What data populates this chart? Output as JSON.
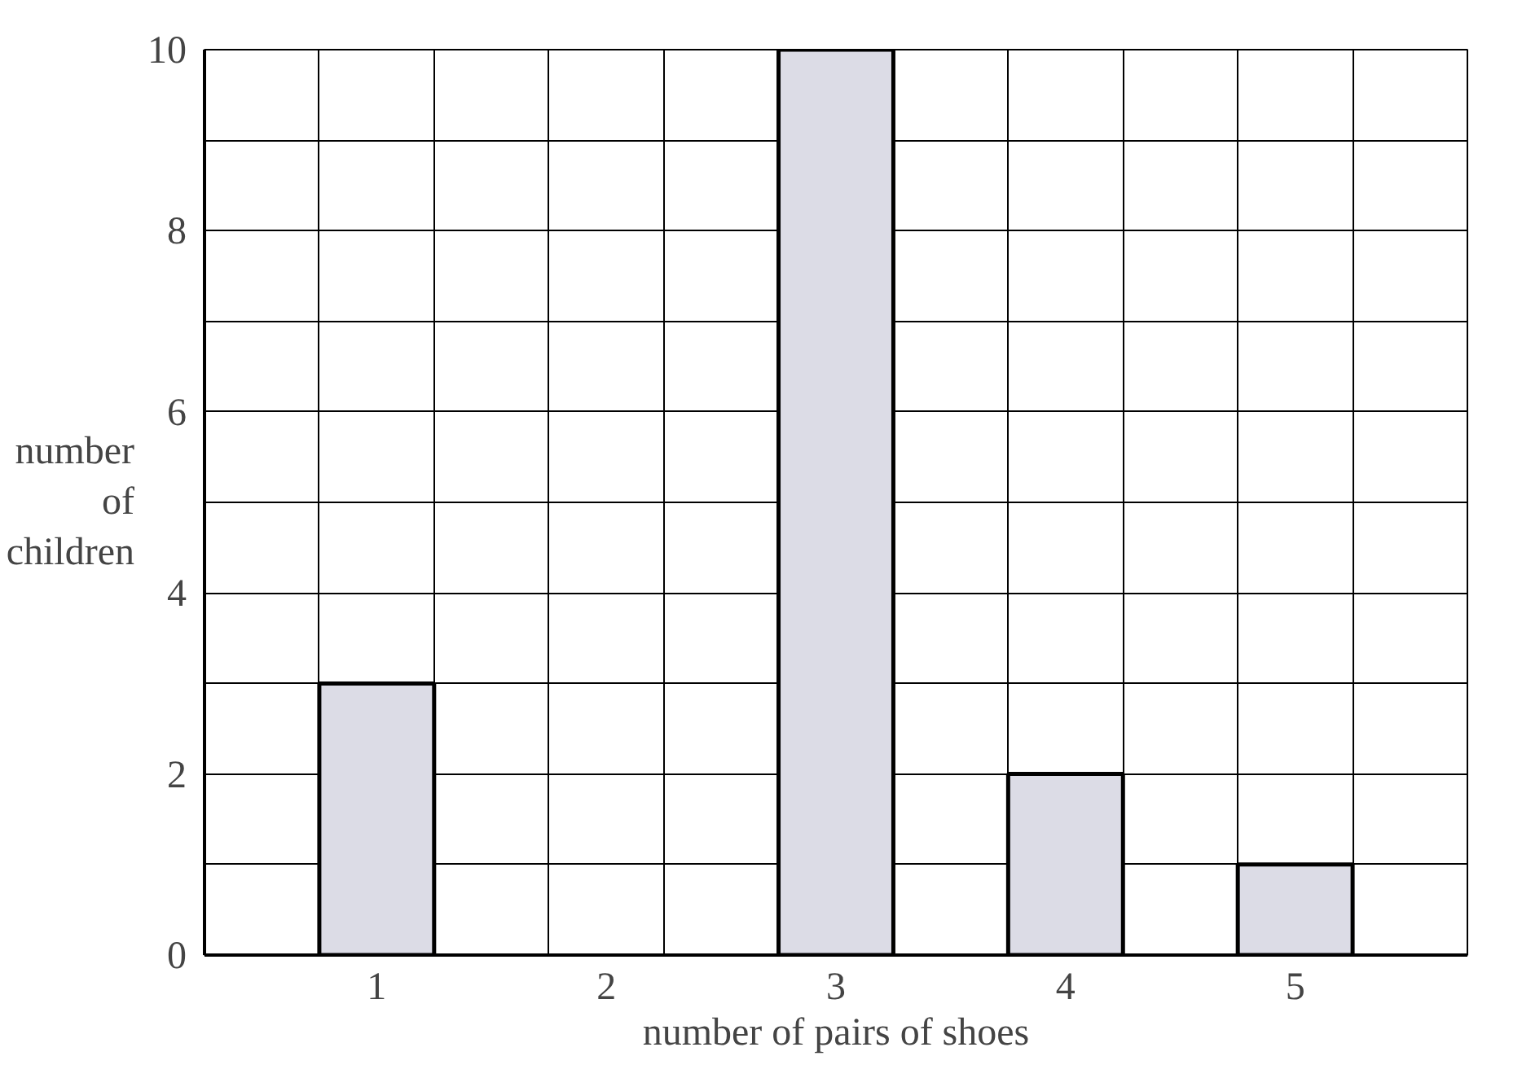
{
  "chart_data": {
    "type": "bar",
    "xlabel": "number of pairs of shoes",
    "ylabel": "number of children",
    "categories": [
      "1",
      "2",
      "3",
      "4",
      "5"
    ],
    "values": [
      3,
      0,
      10,
      2,
      1
    ],
    "color": "#dcdce6",
    "ylim": [
      0,
      10
    ],
    "yticks": [
      0,
      2,
      4,
      6,
      8,
      10
    ],
    "grid": true
  }
}
